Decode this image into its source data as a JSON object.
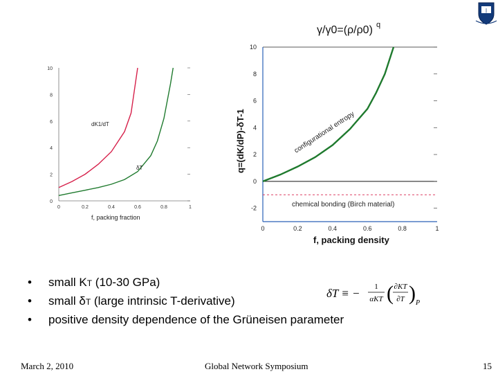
{
  "logo": {
    "icon": "shield-logo-icon"
  },
  "left_chart": {
    "type": "line",
    "xlabel": "f, packing fraction",
    "xticks": [
      "0",
      "0.2",
      "0.4",
      "0.6",
      "0.8",
      "1"
    ],
    "yticks": [
      "0",
      "2",
      "4",
      "6",
      "8",
      "10"
    ],
    "xlim": [
      0,
      1
    ],
    "ylim": [
      0,
      10
    ],
    "series": [
      {
        "name": "dK1/dT",
        "color": "#d6204a",
        "x": [
          0,
          0.1,
          0.2,
          0.3,
          0.4,
          0.5,
          0.55,
          0.6
        ],
        "y": [
          1.0,
          1.45,
          2.0,
          2.75,
          3.7,
          5.2,
          6.6,
          10.0
        ]
      },
      {
        "name": "δT",
        "color": "#1f7a2e",
        "x": [
          0,
          0.1,
          0.2,
          0.3,
          0.4,
          0.5,
          0.6,
          0.7,
          0.75,
          0.8,
          0.85,
          0.87
        ],
        "y": [
          0.4,
          0.6,
          0.8,
          1.0,
          1.25,
          1.6,
          2.2,
          3.4,
          4.5,
          6.2,
          8.8,
          10.0
        ]
      }
    ]
  },
  "right_chart": {
    "type": "line",
    "title_formula": "γ/γ0=(ρ/ρ0)",
    "title_exponent": "q",
    "ylabel": "q=(dK/dP)-δT-1",
    "xlabel": "f, packing density",
    "xticks": [
      "0",
      "0.2",
      "0.4",
      "0.6",
      "0.8",
      "1"
    ],
    "yticks": [
      "-2",
      "0",
      "2",
      "4",
      "6",
      "8",
      "10"
    ],
    "xlim": [
      0,
      1
    ],
    "ylim": [
      -3,
      10
    ],
    "curve_label": "configurational entropy",
    "bonding_label": "chemical bonding (Birch material)",
    "bonding_level": -1,
    "series": [
      {
        "name": "configurational entropy",
        "color": "#1f7a2e",
        "x": [
          0,
          0.1,
          0.2,
          0.3,
          0.4,
          0.5,
          0.6,
          0.65,
          0.7,
          0.75
        ],
        "y": [
          0,
          0.5,
          1.1,
          1.8,
          2.7,
          3.9,
          5.4,
          6.6,
          8.0,
          10.0
        ]
      }
    ]
  },
  "bullets": [
    {
      "pre": "small K",
      "sub": "T",
      "post": " (10-30 GPa)"
    },
    {
      "pre": "small  δ",
      "sub": "T",
      "post": " (large intrinsic T-derivative)"
    },
    {
      "pre": "positive density dependence of the Grüneisen parameter",
      "sub": "",
      "post": ""
    }
  ],
  "formula": {
    "lhs": "δT ≡ −",
    "frac_num": "1",
    "frac_den": "αKT",
    "deriv_num": "∂KT",
    "deriv_den": "∂T",
    "subscript": "P"
  },
  "footer": {
    "date": "March 2, 2010",
    "event": "Global Network Symposium",
    "page": "15"
  }
}
